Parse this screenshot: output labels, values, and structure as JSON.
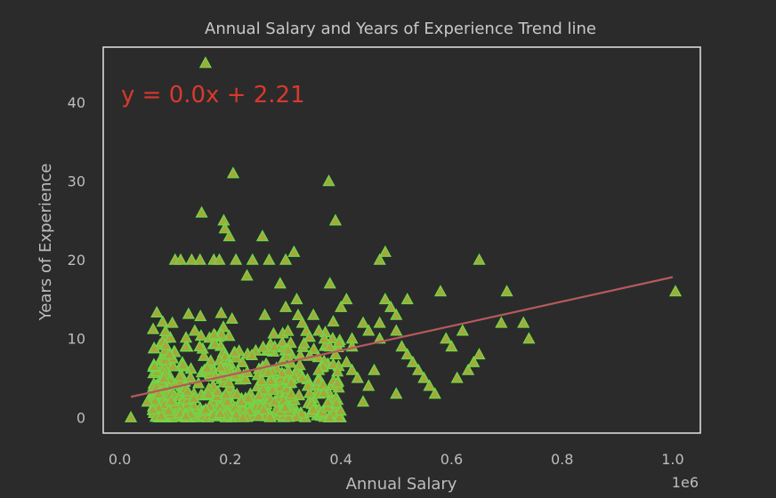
{
  "chart_data": {
    "type": "scatter",
    "title": "Annual Salary and Years of Experience Trend line",
    "xlabel": "Annual Salary",
    "ylabel": "Years of Experience",
    "x_offset_label": "1e6",
    "xlim": [
      -0.03,
      1.05
    ],
    "ylim": [
      -2,
      47
    ],
    "xticks": [
      0.0,
      0.2,
      0.4,
      0.6,
      0.8,
      1.0
    ],
    "xtick_labels": [
      "0.0",
      "0.2",
      "0.4",
      "0.6",
      "0.8",
      "1.0"
    ],
    "yticks": [
      0,
      10,
      20,
      30,
      40
    ],
    "ytick_labels": [
      "0",
      "10",
      "20",
      "30",
      "40"
    ],
    "grid": false,
    "annotation": "y = 0.0x + 2.21",
    "trend_line": {
      "x": [
        0.02,
        1.0
      ],
      "y": [
        2.6,
        17.8
      ]
    },
    "series": [
      {
        "marker": "triangle",
        "x": [
          0.155,
          0.205,
          0.378,
          0.148,
          0.188,
          0.19,
          0.198,
          0.258,
          0.39,
          0.1,
          0.11,
          0.13,
          0.145,
          0.17,
          0.18,
          0.21,
          0.24,
          0.27,
          0.3,
          0.315,
          0.38,
          0.41,
          0.47,
          0.48,
          0.65,
          0.02,
          0.06,
          0.05,
          0.07,
          0.08,
          0.09,
          0.095,
          0.3,
          0.32,
          0.33,
          0.35,
          0.36,
          0.37,
          0.38,
          0.39,
          0.4,
          0.41,
          0.42,
          0.43,
          0.44,
          0.45,
          0.46,
          0.47,
          0.48,
          0.49,
          0.5,
          0.51,
          0.52,
          0.53,
          0.54,
          0.55,
          0.56,
          0.58,
          0.57,
          0.59,
          0.6,
          0.61,
          0.62,
          0.63,
          0.64,
          0.65,
          0.69,
          0.7,
          0.73,
          0.74,
          1.005,
          0.45,
          0.5,
          0.42,
          0.44,
          0.34,
          0.36,
          0.31,
          0.28,
          0.26,
          0.22,
          0.12,
          0.16,
          0.23,
          0.29,
          0.52,
          0.47,
          0.5,
          0.42,
          0.38,
          0.35,
          0.33
        ],
        "y": [
          45,
          31,
          30,
          26,
          25,
          24,
          23,
          23,
          25,
          20,
          20,
          20,
          20,
          20,
          20,
          20,
          20,
          20,
          20,
          21,
          17,
          15,
          20,
          21,
          20,
          0,
          1,
          2,
          3,
          5,
          8,
          12,
          14,
          15,
          12,
          13,
          11,
          10,
          9,
          8,
          14,
          7,
          6,
          5,
          12,
          11,
          6,
          10,
          15,
          14,
          13,
          9,
          8,
          7,
          6,
          5,
          4,
          16,
          3,
          10,
          9,
          5,
          11,
          6,
          7,
          8,
          12,
          16,
          12,
          10,
          16,
          4,
          3,
          10,
          2,
          4,
          6,
          3,
          2,
          1,
          2,
          9,
          3,
          18,
          17,
          15,
          12,
          11,
          9,
          0,
          1,
          5
        ]
      }
    ]
  }
}
